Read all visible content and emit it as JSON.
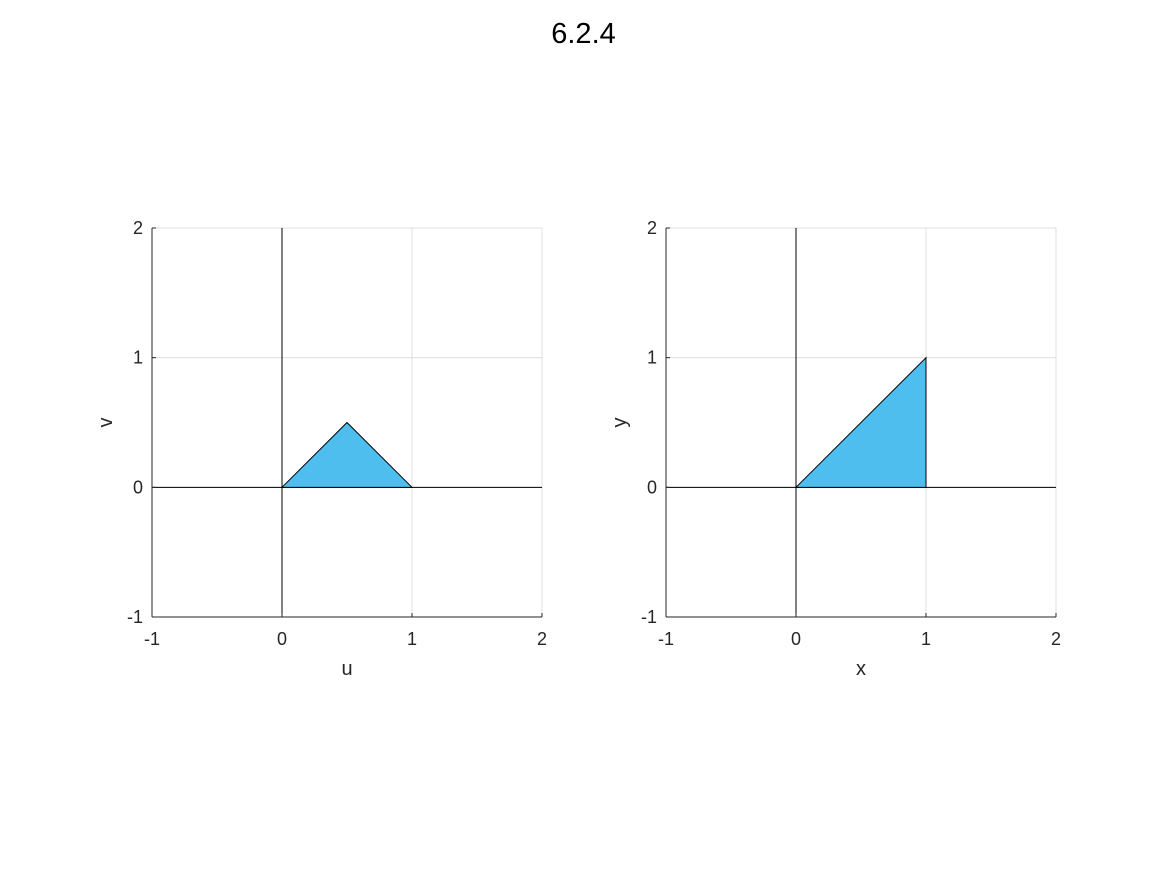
{
  "figure": {
    "title": "6.2.4"
  },
  "colors": {
    "fill": "#4dbeee",
    "edge": "#000000",
    "grid": "#dfdfdf",
    "box": "#dfdfdf",
    "axis_line": "#262626",
    "zero_line": "#000000",
    "text": "#262626"
  },
  "chart_data": [
    {
      "type": "area",
      "title": "",
      "xlabel": "u",
      "ylabel": "v",
      "xlim": [
        -1,
        2
      ],
      "ylim": [
        -1,
        2
      ],
      "xticks": [
        -1,
        0,
        1,
        2
      ],
      "yticks": [
        -1,
        0,
        1,
        2
      ],
      "grid": true,
      "polygon": {
        "x": [
          0,
          0.5,
          1
        ],
        "y": [
          0,
          0.5,
          0
        ]
      }
    },
    {
      "type": "area",
      "title": "",
      "xlabel": "x",
      "ylabel": "y",
      "xlim": [
        -1,
        2
      ],
      "ylim": [
        -1,
        2
      ],
      "xticks": [
        -1,
        0,
        1,
        2
      ],
      "yticks": [
        -1,
        0,
        1,
        2
      ],
      "grid": true,
      "polygon": {
        "x": [
          0,
          1,
          1
        ],
        "y": [
          0,
          1,
          0
        ]
      }
    }
  ]
}
